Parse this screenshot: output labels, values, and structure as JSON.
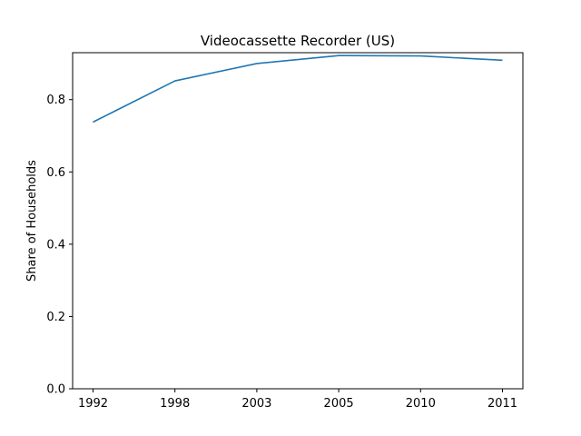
{
  "chart_data": {
    "type": "line",
    "title": "Videocassette Recorder (US)",
    "xlabel": "",
    "ylabel": "Share of Households",
    "categories": [
      "1992",
      "1998",
      "2003",
      "2005",
      "2010",
      "2011"
    ],
    "series": [
      {
        "values": [
          0.738,
          0.852,
          0.9,
          0.922,
          0.921,
          0.909
        ],
        "color": "#1f77b4"
      }
    ],
    "ylim": [
      0,
      0.93
    ],
    "yticks": [
      0.0,
      0.2,
      0.4,
      0.6,
      0.8
    ],
    "ytick_labels": [
      "0.0",
      "0.2",
      "0.4",
      "0.6",
      "0.8"
    ],
    "grid": false,
    "legend": "none"
  }
}
